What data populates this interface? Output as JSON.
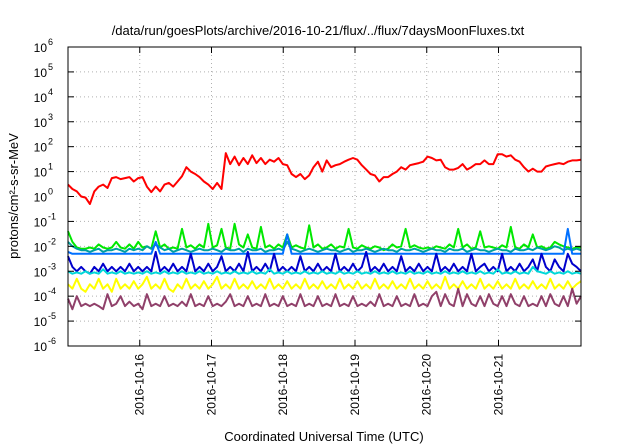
{
  "chart_data": {
    "type": "line",
    "title": "/data/run/goesPlots/archive/2016-10-21/flux/../flux/7daysMoonFluxes.txt",
    "xlabel": "Coordinated Universal Time (UTC)",
    "ylabel": "protons/cm²-s-sr-MeV",
    "y_scale": "log",
    "ylim": [
      1e-06,
      1000000.0
    ],
    "xlim_days": [
      0,
      7.15
    ],
    "grid": true,
    "y_ticks": [
      {
        "base": "10",
        "exp": "-6",
        "value": 1e-06
      },
      {
        "base": "10",
        "exp": "-5",
        "value": 1e-05
      },
      {
        "base": "10",
        "exp": "-4",
        "value": 0.0001
      },
      {
        "base": "10",
        "exp": "-3",
        "value": 0.001
      },
      {
        "base": "10",
        "exp": "-2",
        "value": 0.01
      },
      {
        "base": "10",
        "exp": "-1",
        "value": 0.1
      },
      {
        "base": "10",
        "exp": "0",
        "value": 1
      },
      {
        "base": "10",
        "exp": "1",
        "value": 10
      },
      {
        "base": "10",
        "exp": "2",
        "value": 100
      },
      {
        "base": "10",
        "exp": "3",
        "value": 1000
      },
      {
        "base": "10",
        "exp": "4",
        "value": 10000
      },
      {
        "base": "10",
        "exp": "5",
        "value": 100000
      },
      {
        "base": "10",
        "exp": "6",
        "value": 1000000
      }
    ],
    "x_ticks": [
      {
        "label": "2016-10-16",
        "day": 1.0
      },
      {
        "label": "2016-10-17",
        "day": 2.0
      },
      {
        "label": "2016-10-18",
        "day": 3.0
      },
      {
        "label": "2016-10-19",
        "day": 4.0
      },
      {
        "label": "2016-10-20",
        "day": 5.0
      },
      {
        "label": "2016-10-21",
        "day": 6.0
      }
    ],
    "series": [
      {
        "color": "#ff0000",
        "values": [
          3.0,
          2.0,
          1.6,
          1.0,
          0.9,
          0.5,
          1.6,
          2.5,
          3.0,
          2.2,
          5.5,
          6.0,
          5.0,
          5.5,
          6.0,
          4.0,
          5.5,
          6.0,
          2.5,
          1.5,
          2.5,
          1.6,
          3.0,
          3.5,
          2.5,
          4.0,
          6.5,
          15.0,
          10.0,
          8.0,
          6.0,
          4.0,
          3.0,
          2.0,
          3.5,
          2.0,
          55.0,
          20.0,
          40.0,
          18.0,
          35.0,
          20.0,
          45.0,
          22.0,
          35.0,
          20.0,
          30.0,
          25.0,
          35.0,
          20.0,
          18.0,
          8.0,
          6.0,
          8.0,
          5.0,
          7.0,
          15.0,
          25.0,
          10.0,
          28.0,
          15.0,
          18.0,
          20.0,
          25.0,
          30.0,
          35.0,
          30.0,
          18.0,
          12.0,
          8.0,
          7.0,
          4.0,
          6.0,
          6.0,
          8.0,
          10.0,
          15.0,
          12.0,
          18.0,
          20.0,
          22.0,
          25.0,
          40.0,
          35.0,
          28.0,
          30.0,
          15.0,
          12.0,
          12.0,
          14.0,
          20.0,
          12.0,
          15.0,
          20.0,
          20.0,
          28.0,
          20.0,
          20.0,
          50.0,
          50.0,
          40.0,
          45.0,
          30.0,
          25.0,
          15.0,
          10.0,
          13.0,
          10.0,
          10.0,
          16.0,
          18.0,
          20.0,
          22.0,
          20.0,
          25.0,
          28.0,
          28.0,
          30.0
        ]
      },
      {
        "color": "#00e800",
        "values": [
          0.04,
          0.015,
          0.009,
          0.008,
          0.008,
          0.009,
          0.008,
          0.012,
          0.009,
          0.008,
          0.009,
          0.015,
          0.009,
          0.008,
          0.012,
          0.008,
          0.015,
          0.009,
          0.01,
          0.008,
          0.04,
          0.009,
          0.012,
          0.008,
          0.009,
          0.008,
          0.05,
          0.009,
          0.011,
          0.008,
          0.012,
          0.009,
          0.08,
          0.009,
          0.011,
          0.05,
          0.009,
          0.008,
          0.08,
          0.012,
          0.009,
          0.03,
          0.009,
          0.008,
          0.06,
          0.009,
          0.011,
          0.008,
          0.012,
          0.009,
          0.03,
          0.009,
          0.011,
          0.009,
          0.008,
          0.07,
          0.009,
          0.012,
          0.008,
          0.009,
          0.012,
          0.008,
          0.01,
          0.009,
          0.05,
          0.009,
          0.008,
          0.011,
          0.009,
          0.008,
          0.01,
          0.009,
          0.007,
          0.008,
          0.012,
          0.009,
          0.01,
          0.05,
          0.009,
          0.011,
          0.009,
          0.008,
          0.009,
          0.008,
          0.01,
          0.009,
          0.008,
          0.012,
          0.009,
          0.05,
          0.009,
          0.012,
          0.008,
          0.009,
          0.04,
          0.009,
          0.01,
          0.009,
          0.008,
          0.011,
          0.009,
          0.06,
          0.009,
          0.008,
          0.012,
          0.009,
          0.03,
          0.009,
          0.01,
          0.008,
          0.009,
          0.015,
          0.012,
          0.01,
          0.009,
          0.008,
          0.009,
          0.009
        ]
      },
      {
        "color": "#00a0a0",
        "values": [
          0.015,
          0.01,
          0.008,
          0.007,
          0.007,
          0.006,
          0.007,
          0.008,
          0.006,
          0.007,
          0.007,
          0.008,
          0.007,
          0.006,
          0.008,
          0.007,
          0.008,
          0.007,
          0.01,
          0.008,
          0.012,
          0.009,
          0.007,
          0.008,
          0.006,
          0.007,
          0.008,
          0.007,
          0.006,
          0.007,
          0.008,
          0.007,
          0.007,
          0.008,
          0.007,
          0.006,
          0.008,
          0.007,
          0.007,
          0.008,
          0.006,
          0.008,
          0.007,
          0.007,
          0.008,
          0.006,
          0.007,
          0.007,
          0.008,
          0.007,
          0.015,
          0.008,
          0.007,
          0.006,
          0.007,
          0.008,
          0.007,
          0.006,
          0.007,
          0.008,
          0.007,
          0.007,
          0.006,
          0.007,
          0.008,
          0.006,
          0.007,
          0.007,
          0.008,
          0.007,
          0.006,
          0.007,
          0.008,
          0.007,
          0.007,
          0.006,
          0.008,
          0.007,
          0.007,
          0.008,
          0.007,
          0.006,
          0.007,
          0.008,
          0.007,
          0.007,
          0.006,
          0.008,
          0.007,
          0.007,
          0.008,
          0.006,
          0.007,
          0.008,
          0.007,
          0.007,
          0.006,
          0.007,
          0.008,
          0.007,
          0.007,
          0.006,
          0.008,
          0.007,
          0.007,
          0.008,
          0.007,
          0.009,
          0.008,
          0.007,
          0.008,
          0.01,
          0.009,
          0.007,
          0.008,
          0.007,
          0.008,
          0.007
        ]
      },
      {
        "color": "#0070ff",
        "values": [
          0.006,
          0.005,
          0.005,
          0.005,
          0.005,
          0.005,
          0.005,
          0.005,
          0.005,
          0.005,
          0.005,
          0.005,
          0.005,
          0.005,
          0.005,
          0.005,
          0.005,
          0.005,
          0.005,
          0.005,
          0.015,
          0.005,
          0.005,
          0.005,
          0.005,
          0.005,
          0.005,
          0.005,
          0.005,
          0.005,
          0.005,
          0.005,
          0.005,
          0.005,
          0.005,
          0.005,
          0.005,
          0.005,
          0.005,
          0.005,
          0.005,
          0.005,
          0.005,
          0.005,
          0.005,
          0.005,
          0.005,
          0.005,
          0.005,
          0.005,
          0.03,
          0.005,
          0.005,
          0.005,
          0.005,
          0.005,
          0.005,
          0.005,
          0.005,
          0.005,
          0.005,
          0.005,
          0.005,
          0.005,
          0.005,
          0.005,
          0.005,
          0.005,
          0.005,
          0.005,
          0.005,
          0.005,
          0.005,
          0.005,
          0.005,
          0.005,
          0.005,
          0.005,
          0.005,
          0.005,
          0.005,
          0.005,
          0.005,
          0.005,
          0.005,
          0.005,
          0.005,
          0.005,
          0.005,
          0.005,
          0.005,
          0.005,
          0.005,
          0.005,
          0.005,
          0.005,
          0.005,
          0.005,
          0.005,
          0.005,
          0.005,
          0.005,
          0.005,
          0.005,
          0.005,
          0.005,
          0.005,
          0.005,
          0.005,
          0.005,
          0.005,
          0.005,
          0.005,
          0.005,
          0.05,
          0.005,
          0.005,
          0.005
        ]
      },
      {
        "color": "#0000cc",
        "values": [
          0.004,
          0.0015,
          0.001,
          0.0015,
          0.001,
          0.0008,
          0.0015,
          0.001,
          0.002,
          0.001,
          0.0015,
          0.001,
          0.0015,
          0.001,
          0.002,
          0.001,
          0.0015,
          0.001,
          0.0015,
          0.001,
          0.006,
          0.001,
          0.0015,
          0.001,
          0.002,
          0.001,
          0.0015,
          0.001,
          0.005,
          0.001,
          0.0015,
          0.001,
          0.002,
          0.001,
          0.0015,
          0.004,
          0.001,
          0.0015,
          0.001,
          0.002,
          0.001,
          0.006,
          0.001,
          0.0015,
          0.001,
          0.002,
          0.001,
          0.005,
          0.001,
          0.0015,
          0.001,
          0.0015,
          0.001,
          0.004,
          0.001,
          0.0015,
          0.001,
          0.002,
          0.001,
          0.0015,
          0.001,
          0.005,
          0.001,
          0.0015,
          0.001,
          0.002,
          0.001,
          0.0015,
          0.006,
          0.001,
          0.0015,
          0.001,
          0.002,
          0.001,
          0.0015,
          0.001,
          0.004,
          0.001,
          0.0015,
          0.001,
          0.002,
          0.001,
          0.0015,
          0.001,
          0.005,
          0.001,
          0.0015,
          0.001,
          0.002,
          0.001,
          0.0015,
          0.001,
          0.005,
          0.001,
          0.0015,
          0.002,
          0.001,
          0.0015,
          0.001,
          0.005,
          0.001,
          0.0015,
          0.001,
          0.002,
          0.001,
          0.0015,
          0.003,
          0.001,
          0.005,
          0.0015,
          0.001,
          0.003,
          0.0015,
          0.001,
          0.005,
          0.002,
          0.0015,
          0.001
        ]
      },
      {
        "color": "#00d8d8",
        "values": [
          0.001,
          0.0008,
          0.0009,
          0.0008,
          0.001,
          0.0008,
          0.0009,
          0.0008,
          0.0012,
          0.0008,
          0.0009,
          0.0008,
          0.001,
          0.0008,
          0.0009,
          0.0008,
          0.0009,
          0.0008,
          0.001,
          0.0008,
          0.0009,
          0.0008,
          0.001,
          0.0008,
          0.0009,
          0.0008,
          0.001,
          0.0008,
          0.0009,
          0.0008,
          0.001,
          0.0008,
          0.0009,
          0.0008,
          0.001,
          0.0008,
          0.0009,
          0.0008,
          0.001,
          0.0008,
          0.0009,
          0.0008,
          0.001,
          0.0008,
          0.0009,
          0.0008,
          0.0012,
          0.0008,
          0.0009,
          0.0008,
          0.001,
          0.0008,
          0.0009,
          0.0008,
          0.001,
          0.0008,
          0.0009,
          0.0008,
          0.001,
          0.0008,
          0.0009,
          0.0008,
          0.001,
          0.0008,
          0.0009,
          0.0008,
          0.001,
          0.0008,
          0.0009,
          0.0008,
          0.001,
          0.0008,
          0.0009,
          0.0008,
          0.001,
          0.0008,
          0.0009,
          0.0008,
          0.001,
          0.0008,
          0.0009,
          0.0008,
          0.001,
          0.0008,
          0.0009,
          0.0008,
          0.001,
          0.0008,
          0.0009,
          0.0008,
          0.001,
          0.0008,
          0.0009,
          0.0008,
          0.001,
          0.0008,
          0.0009,
          0.0008,
          0.0012,
          0.0008,
          0.0009,
          0.0008,
          0.001,
          0.0008,
          0.0009,
          0.0008,
          0.0015,
          0.001,
          0.0009,
          0.0008,
          0.001,
          0.0008,
          0.0009,
          0.0008,
          0.001,
          0.0008,
          0.0009,
          0.0008
        ]
      },
      {
        "color": "#ffff00",
        "values": [
          0.0003,
          0.0002,
          0.0005,
          0.0002,
          0.00015,
          0.0003,
          0.0002,
          0.0005,
          0.0002,
          0.0003,
          0.00015,
          0.0005,
          0.0002,
          0.0003,
          0.0002,
          0.0004,
          0.0002,
          0.0003,
          0.0006,
          0.0002,
          0.0003,
          0.0002,
          0.0005,
          0.0002,
          0.00015,
          0.0003,
          0.0002,
          0.0005,
          0.0002,
          0.0003,
          0.0002,
          0.0004,
          0.0002,
          0.0003,
          0.0006,
          0.0002,
          0.0003,
          0.0002,
          0.0005,
          0.0002,
          0.0003,
          0.0002,
          0.0004,
          0.0002,
          0.0003,
          0.0002,
          0.0005,
          0.0002,
          0.0003,
          0.0002,
          0.0004,
          0.0002,
          0.0003,
          0.0002,
          0.0005,
          0.0002,
          0.0003,
          0.0002,
          0.0004,
          0.0002,
          0.0003,
          0.0002,
          0.0005,
          0.0002,
          0.0003,
          0.0002,
          0.0004,
          0.0002,
          0.0003,
          0.0002,
          0.0005,
          0.0002,
          0.0003,
          0.0002,
          0.0004,
          0.0002,
          0.0003,
          0.0002,
          0.0005,
          0.0002,
          0.0003,
          0.0002,
          0.0004,
          0.0002,
          0.0003,
          0.0002,
          0.0006,
          0.0002,
          0.0003,
          0.0002,
          0.0004,
          0.0002,
          0.0003,
          0.0002,
          0.0005,
          0.0002,
          0.0003,
          0.0002,
          0.0004,
          0.0002,
          0.0003,
          0.0002,
          0.0005,
          0.0002,
          0.0003,
          0.0002,
          0.0004,
          0.0002,
          0.0003,
          0.0002,
          0.0005,
          0.0002,
          0.0003,
          0.0002,
          0.0004,
          0.0002,
          0.0003,
          0.0004
        ]
      },
      {
        "color": "#90406a",
        "values": [
          8e-05,
          3e-05,
          0.0001,
          4e-05,
          5e-05,
          4e-05,
          5e-05,
          4e-05,
          3e-05,
          0.00012,
          4e-05,
          5e-05,
          0.0001,
          4e-05,
          6e-05,
          4e-05,
          5e-05,
          3e-05,
          0.00012,
          4e-05,
          5e-05,
          4e-05,
          0.0001,
          4e-05,
          5e-05,
          4e-05,
          6e-05,
          4e-05,
          0.00012,
          4e-05,
          5e-05,
          4e-05,
          0.0001,
          4e-05,
          5e-05,
          4e-05,
          6e-05,
          0.00012,
          4e-05,
          5e-05,
          4e-05,
          0.0001,
          4e-05,
          5e-05,
          4e-05,
          0.00012,
          4e-05,
          5e-05,
          4e-05,
          0.0001,
          4e-05,
          5e-05,
          4e-05,
          0.00012,
          4e-05,
          5e-05,
          4e-05,
          0.0001,
          4e-05,
          5e-05,
          4e-05,
          0.00012,
          4e-05,
          5e-05,
          4e-05,
          0.0001,
          4e-05,
          5e-05,
          4e-05,
          6e-05,
          4e-05,
          0.00012,
          4e-05,
          5e-05,
          4e-05,
          0.0001,
          4e-05,
          5e-05,
          4e-05,
          0.00012,
          4e-05,
          5e-05,
          4e-05,
          0.0001,
          0.00015,
          4e-05,
          0.00012,
          5e-05,
          4e-05,
          0.0002,
          4e-05,
          0.00012,
          5e-05,
          4e-05,
          0.0001,
          4e-05,
          0.00012,
          5e-05,
          4e-05,
          0.0001,
          4e-05,
          0.00012,
          5e-05,
          4e-05,
          0.0001,
          4e-05,
          5e-05,
          4e-05,
          0.0001,
          4e-05,
          0.00012,
          5e-05,
          4e-05,
          0.0001,
          4e-05,
          0.0002,
          5e-05,
          0.0001
        ]
      }
    ]
  }
}
